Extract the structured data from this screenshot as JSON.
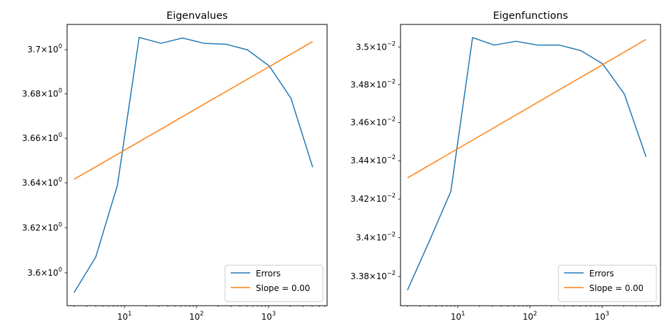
{
  "chart_data": [
    {
      "type": "line",
      "title": "Eigenvalues",
      "xlabel": "",
      "ylabel": "",
      "xscale": "log",
      "yscale": "log",
      "xlim": [
        1.6,
        6500
      ],
      "ylim": [
        3.5855,
        3.7115
      ],
      "xticks": [
        {
          "value": 10,
          "base": "10",
          "exp": "1"
        },
        {
          "value": 100,
          "base": "10",
          "exp": "2"
        },
        {
          "value": 1000,
          "base": "10",
          "exp": "3"
        }
      ],
      "yticks": [
        {
          "value": 3.6,
          "mantissa": "3.6",
          "base": "10",
          "exp": "0"
        },
        {
          "value": 3.62,
          "mantissa": "3.62",
          "base": "10",
          "exp": "0"
        },
        {
          "value": 3.64,
          "mantissa": "3.64",
          "base": "10",
          "exp": "0"
        },
        {
          "value": 3.66,
          "mantissa": "3.66",
          "base": "10",
          "exp": "0"
        },
        {
          "value": 3.68,
          "mantissa": "3.68",
          "base": "10",
          "exp": "0"
        },
        {
          "value": 3.7,
          "mantissa": "3.7",
          "base": "10",
          "exp": "0"
        }
      ],
      "series": [
        {
          "name": "Errors",
          "color": "#1f77b4",
          "x": [
            2,
            4,
            8,
            16,
            32,
            64,
            128,
            256,
            512,
            1024,
            2048,
            4096
          ],
          "y": [
            3.5913,
            3.607,
            3.639,
            3.7056,
            3.7029,
            3.7053,
            3.7029,
            3.7025,
            3.6999,
            3.6926,
            3.678,
            3.647
          ]
        },
        {
          "name": "Slope = 0.00",
          "color": "#ff7f0e",
          "x": [
            2,
            4096
          ],
          "y": [
            3.6416,
            3.7037
          ]
        }
      ],
      "grid": false,
      "legend_position": "lower right"
    },
    {
      "type": "line",
      "title": "Eigenfunctions",
      "xlabel": "",
      "ylabel": "",
      "xscale": "log",
      "yscale": "log",
      "xlim": [
        1.6,
        6500
      ],
      "ylim": [
        0.03365,
        0.03512
      ],
      "xticks": [
        {
          "value": 10,
          "base": "10",
          "exp": "1"
        },
        {
          "value": 100,
          "base": "10",
          "exp": "2"
        },
        {
          "value": 1000,
          "base": "10",
          "exp": "3"
        }
      ],
      "yticks": [
        {
          "value": 0.0338,
          "mantissa": "3.38",
          "base": "10",
          "exp": "−2"
        },
        {
          "value": 0.034,
          "mantissa": "3.4",
          "base": "10",
          "exp": "−2"
        },
        {
          "value": 0.0342,
          "mantissa": "3.42",
          "base": "10",
          "exp": "−2"
        },
        {
          "value": 0.0344,
          "mantissa": "3.44",
          "base": "10",
          "exp": "−2"
        },
        {
          "value": 0.0346,
          "mantissa": "3.46",
          "base": "10",
          "exp": "−2"
        },
        {
          "value": 0.0348,
          "mantissa": "3.48",
          "base": "10",
          "exp": "−2"
        },
        {
          "value": 0.035,
          "mantissa": "3.5",
          "base": "10",
          "exp": "−2"
        }
      ],
      "series": [
        {
          "name": "Errors",
          "color": "#1f77b4",
          "x": [
            2,
            4,
            8,
            16,
            32,
            64,
            128,
            256,
            512,
            1024,
            2048,
            4096
          ],
          "y": [
            0.03373,
            0.03398,
            0.03424,
            0.03505,
            0.03501,
            0.03503,
            0.03501,
            0.03501,
            0.03498,
            0.03491,
            0.03475,
            0.03442
          ]
        },
        {
          "name": "Slope = 0.00",
          "color": "#ff7f0e",
          "x": [
            2,
            4096
          ],
          "y": [
            0.03431,
            0.03504
          ]
        }
      ],
      "grid": false,
      "legend_position": "lower right"
    }
  ]
}
